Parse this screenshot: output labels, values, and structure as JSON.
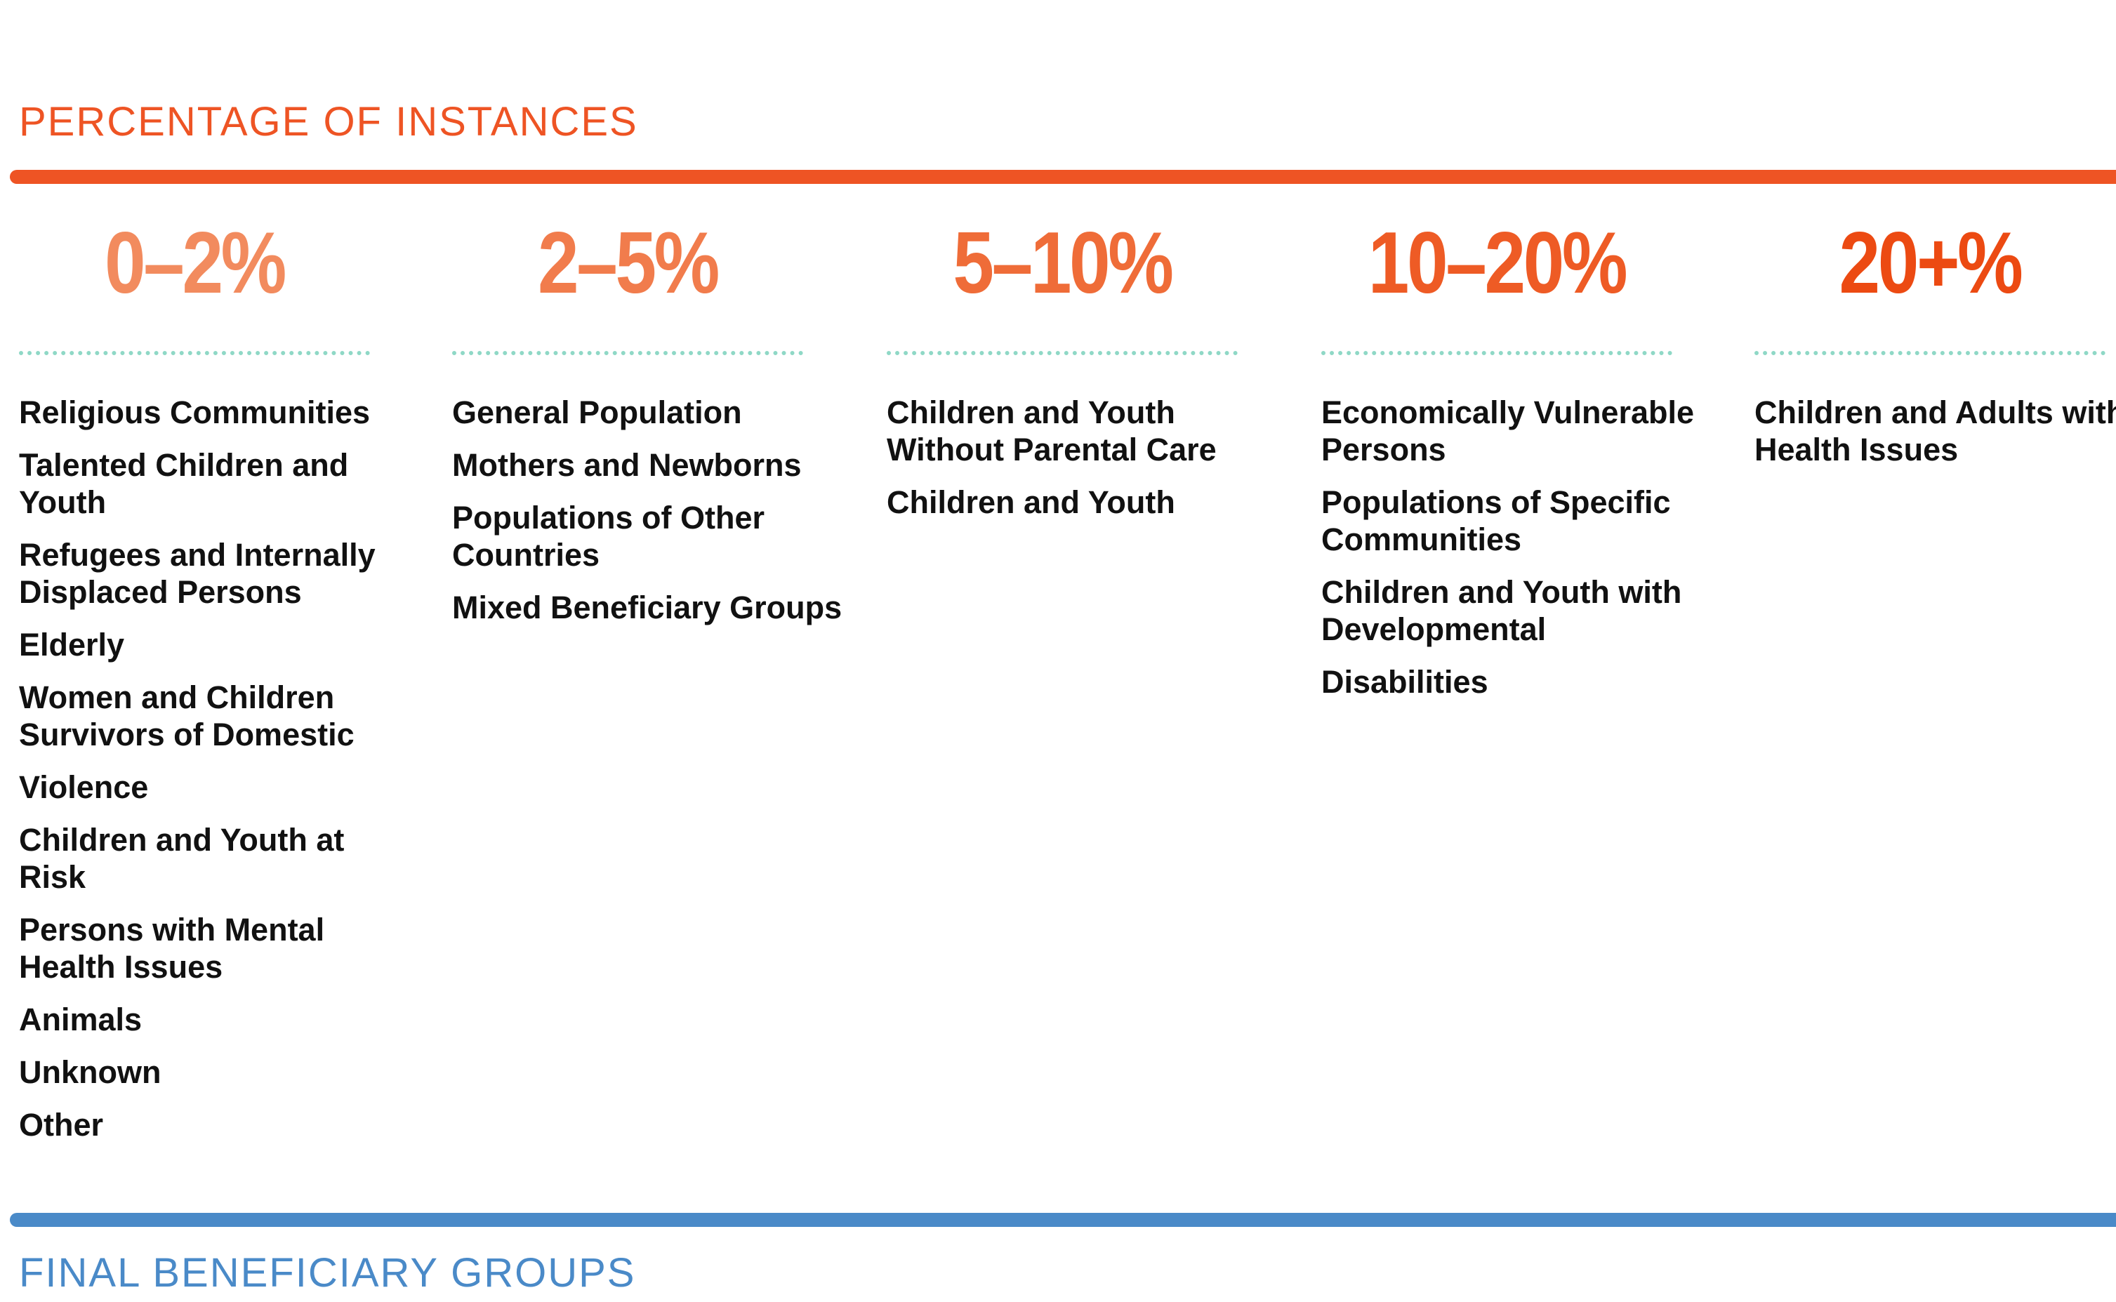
{
  "header": {
    "title": "PERCENTAGE OF INSTANCES"
  },
  "columns": [
    {
      "range": "0–2%",
      "color": "#f28b5e",
      "items": [
        "Religious Communities",
        "Talented Children and Youth",
        "Refugees and Internally Displaced Persons",
        "Elderly",
        "Women and Children Survivors of Domestic",
        "Violence",
        "Children and Youth at Risk",
        "Persons with Mental Health Issues",
        "Animals",
        "Unknown",
        "Other"
      ]
    },
    {
      "range": "2–5%",
      "color": "#f17c4c",
      "items": [
        "General Population",
        "Mothers and Newborns",
        "Populations of Other Countries",
        "Mixed Beneficiary Groups"
      ]
    },
    {
      "range": "5–10%",
      "color": "#ef6c38",
      "items": [
        "Children and Youth Without Parental Care",
        "Children and Youth"
      ]
    },
    {
      "range": "10–20%",
      "color": "#ee5b25",
      "items": [
        "Economically Vulnerable Persons",
        "Populations of Specific Communities",
        "Children and Youth with Developmental",
        "Disabilities"
      ]
    },
    {
      "range": "20+%",
      "color": "#ec4a12",
      "items": [
        "Children and Adults with Health Issues"
      ]
    }
  ],
  "footer": {
    "title": "FINAL BENEFICIARY GROUPS"
  }
}
